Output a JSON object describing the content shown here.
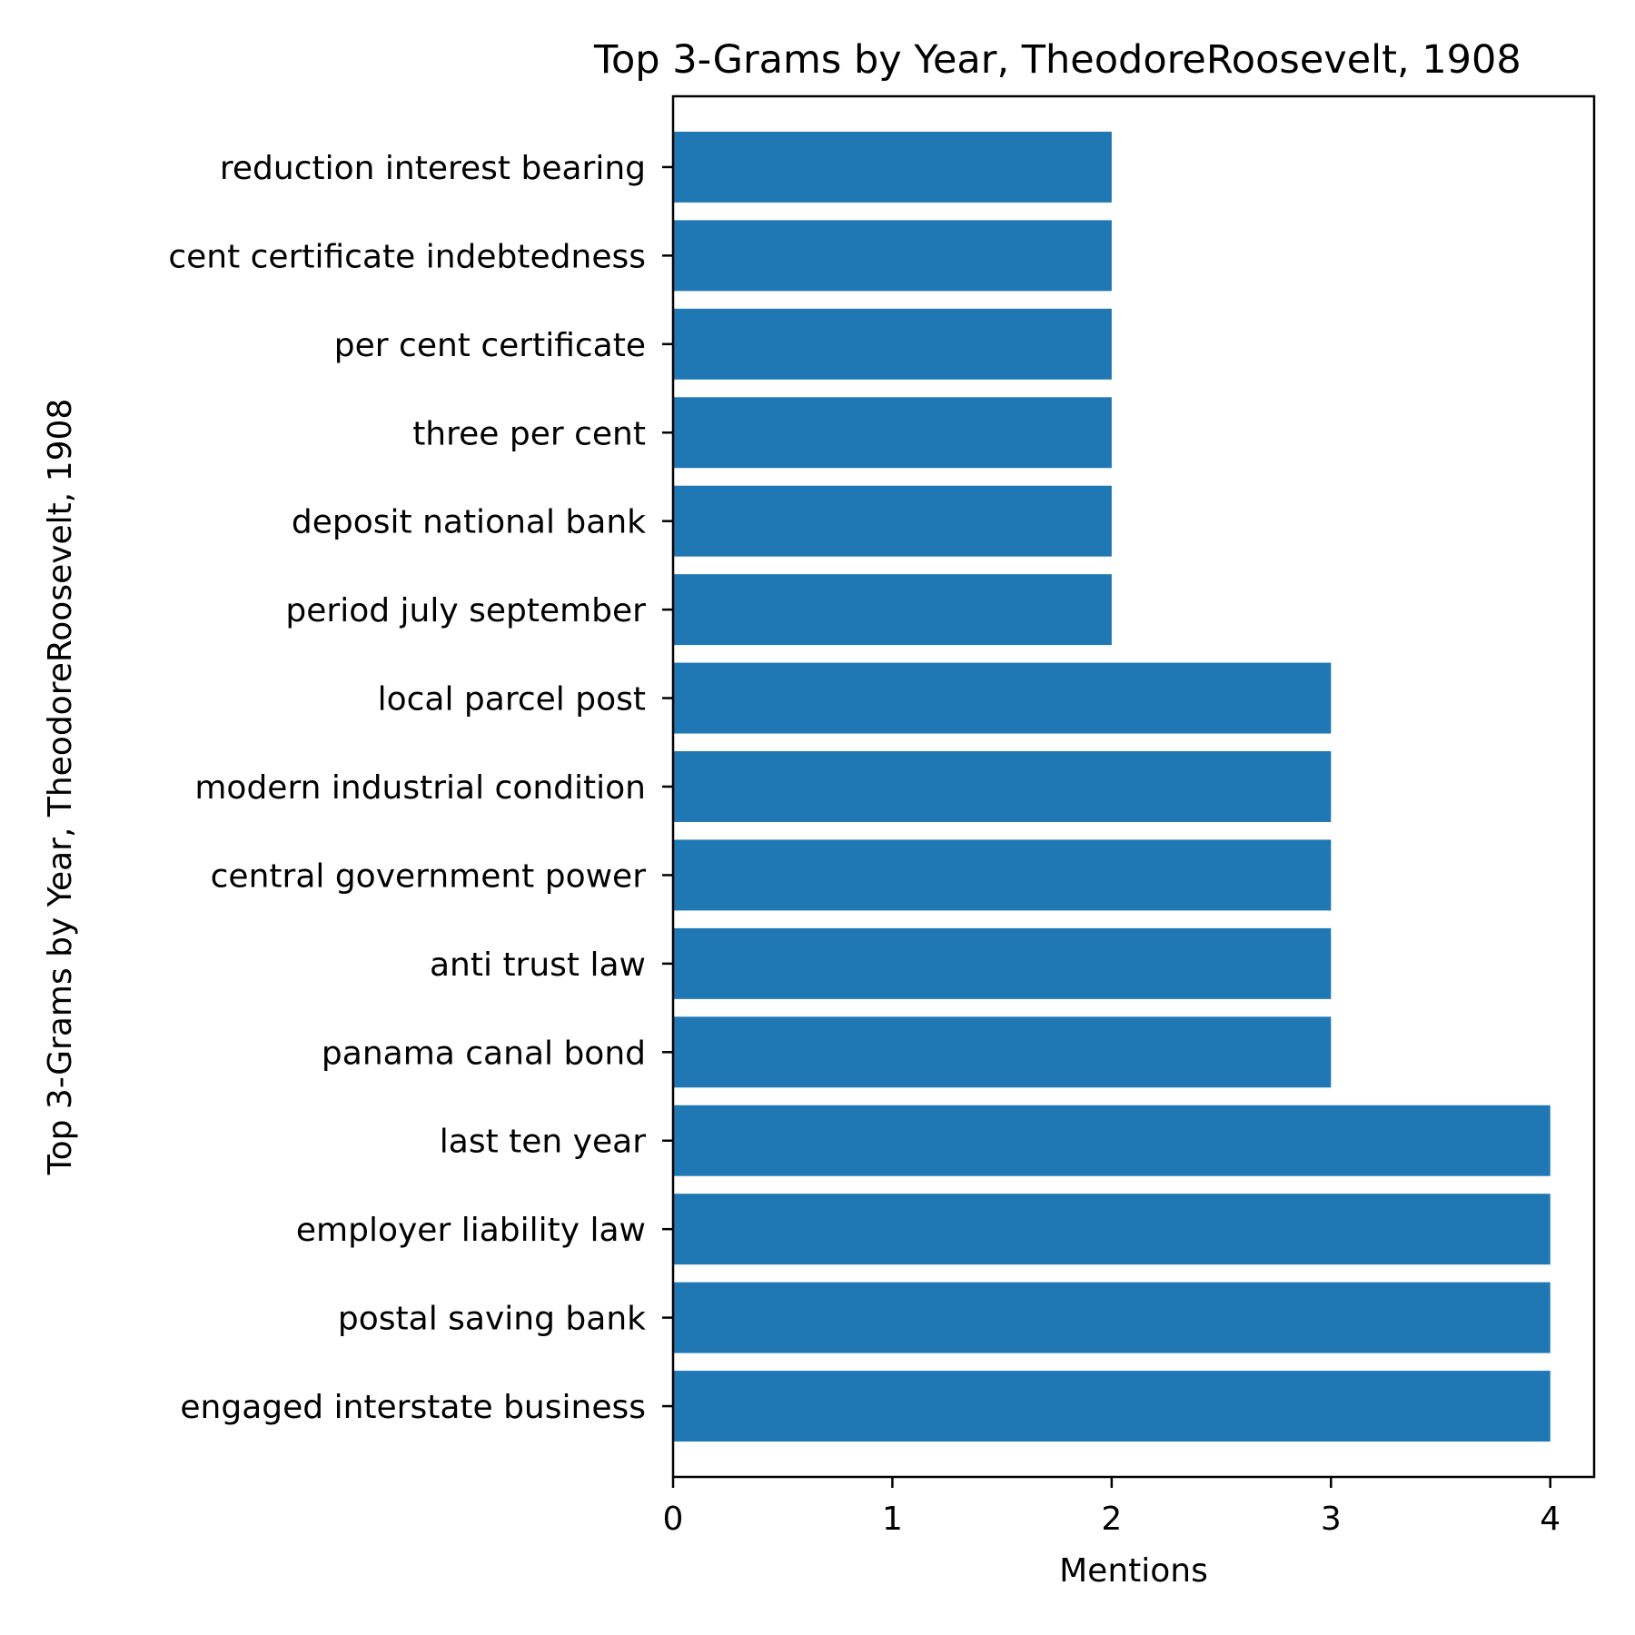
{
  "chart_data": {
    "type": "bar",
    "orientation": "horizontal",
    "title": "Top 3-Grams by Year, TheodoreRoosevelt, 1908",
    "xlabel": "Mentions",
    "ylabel": "Top 3-Grams by Year, TheodoreRoosevelt, 1908",
    "xlim": [
      0,
      4.2
    ],
    "xticks": [
      0,
      1,
      2,
      3,
      4
    ],
    "grid": false,
    "bar_color": "#1f77b4",
    "categories": [
      "engaged interstate business",
      "postal saving bank",
      "employer liability law",
      "last ten year",
      "panama canal bond",
      "anti trust law",
      "central government power",
      "modern industrial condition",
      "local parcel post",
      "period july september",
      "deposit national bank",
      "three per cent",
      "per cent certificate",
      "cent certificate indebtedness",
      "reduction interest bearing"
    ],
    "values": [
      4,
      4,
      4,
      4,
      3,
      3,
      3,
      3,
      3,
      2,
      2,
      2,
      2,
      2,
      2
    ]
  }
}
